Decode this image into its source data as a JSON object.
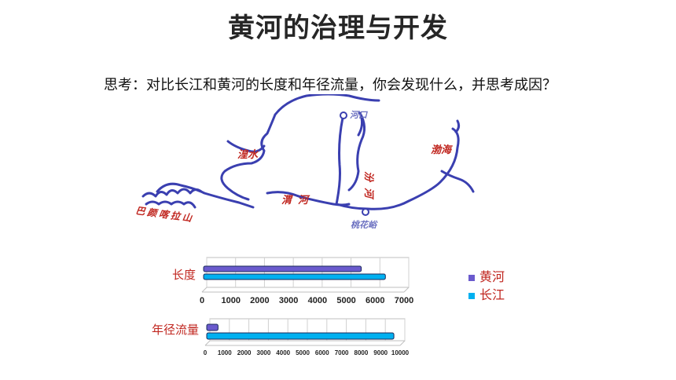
{
  "title": "黄河的治理与开发",
  "question": "思考：对比长江和黄河的长度和年径流量，你会发现什么，并思考成因？",
  "map": {
    "labels": {
      "hekou": "河口",
      "huaishui": "湟水",
      "fenhe": "汾河",
      "weihe": "渭河",
      "bohai": "渤海",
      "taohuayu": "桃花峪",
      "bayankala": "巴颜喀拉山"
    }
  },
  "legend": [
    {
      "name": "黄河",
      "color": "#6a5acd"
    },
    {
      "name": "长江",
      "color": "#00b0f0"
    }
  ],
  "chart_data": [
    {
      "type": "bar",
      "categories": [
        "长度"
      ],
      "series": [
        {
          "name": "黄河",
          "values": [
            5464
          ]
        },
        {
          "name": "长江",
          "values": [
            6300
          ]
        }
      ],
      "xlim": [
        0,
        7000
      ],
      "ticks": [
        "0",
        "1000",
        "2000",
        "3000",
        "4000",
        "5000",
        "6000",
        "7000"
      ]
    },
    {
      "type": "bar",
      "categories": [
        "年径流量"
      ],
      "series": [
        {
          "name": "黄河",
          "values": [
            580
          ]
        },
        {
          "name": "长江",
          "values": [
            9600
          ]
        }
      ],
      "xlim": [
        0,
        10000
      ],
      "ticks": [
        "0",
        "1000",
        "2000",
        "3000",
        "4000",
        "5000",
        "6000",
        "7000",
        "8000",
        "9000",
        "10000"
      ]
    }
  ]
}
